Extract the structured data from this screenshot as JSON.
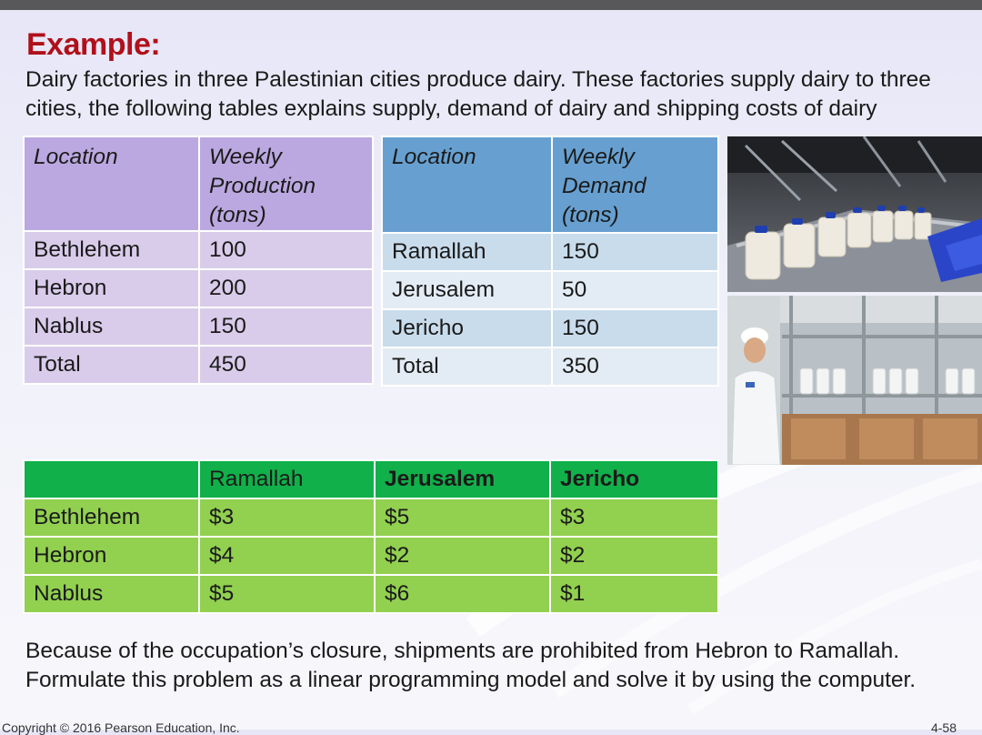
{
  "slide": {
    "title": "Example:",
    "intro": "Dairy factories in three Palestinian cities produce dairy. These factories supply dairy to three cities, the following tables explains supply, demand of dairy and shipping costs of dairy",
    "outro": "Because of the occupation’s closure, shipments are prohibited from Hebron to Ramallah. Formulate this problem as a linear programming model and solve it by using the computer.",
    "footer_left": "Copyright © 2016 Pearson Education, Inc.",
    "footer_right": "4-58"
  },
  "supply_table": {
    "headers": [
      "Location",
      "Weekly\nProduction\n(tons)"
    ],
    "rows": [
      [
        "Bethlehem",
        "100"
      ],
      [
        "Hebron",
        "200"
      ],
      [
        "Nablus",
        "150"
      ],
      [
        "Total",
        "450"
      ]
    ]
  },
  "demand_table": {
    "headers": [
      "Location",
      "Weekly\nDemand\n(tons)"
    ],
    "rows": [
      [
        "Ramallah",
        "150"
      ],
      [
        "Jerusalem",
        "50"
      ],
      [
        "Jericho",
        "150"
      ],
      [
        "Total",
        "350"
      ]
    ]
  },
  "cost_table": {
    "headers": [
      "",
      "Ramallah",
      "Jerusalem",
      "Jericho"
    ],
    "rows": [
      [
        "Bethlehem",
        "$3",
        "$5",
        "$3"
      ],
      [
        "Hebron",
        "$4",
        "$2",
        "$2"
      ],
      [
        "Nablus",
        "$5",
        "$6",
        "$1"
      ]
    ]
  },
  "colors": {
    "title": "#b0101b",
    "supply_header": "#bba8e0",
    "supply_body": "#d9ccea",
    "demand_header": "#67a0d0",
    "demand_row_a": "#c9dcec",
    "demand_row_b": "#e3ecf5",
    "cost_header": "#11b04a",
    "cost_body": "#92d050"
  },
  "images": [
    {
      "name": "milk-bottling-line-photo"
    },
    {
      "name": "worker-inspecting-bottles-photo"
    }
  ]
}
